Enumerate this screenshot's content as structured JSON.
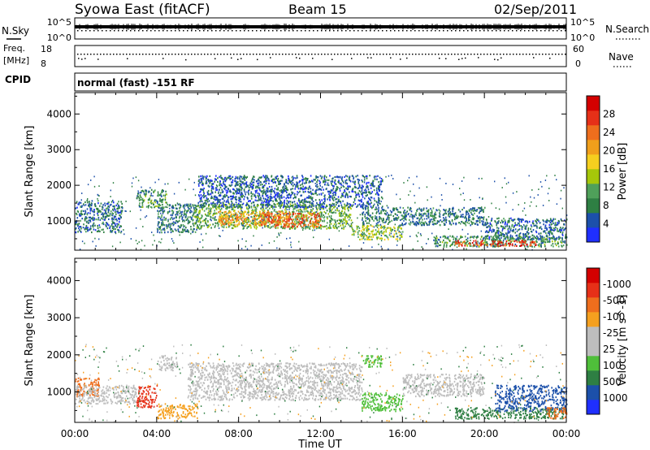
{
  "header": {
    "station": "Syowa East (fitACF)",
    "beam": "Beam 15",
    "date": "02/Sep/2011"
  },
  "status_panels": {
    "nsky_label": "N.Sky",
    "nsky_ticks": [
      "10^5",
      "10^0"
    ],
    "nsearch_label": "N.Search",
    "nsearch_ticks": [
      "10^5",
      "10^0"
    ],
    "freq_label_line1": "Freq.",
    "freq_label_line2": "[MHz]",
    "freq_ticks": [
      "18",
      "8"
    ],
    "nave_label": "Nave",
    "nave_ticks": [
      "60",
      "0"
    ],
    "cpid_label": "CPID",
    "cpid_text": "normal (fast) -151 RF"
  },
  "chart_data": [
    {
      "type": "heatmap",
      "title": "",
      "ylabel": "Slant Range [km]",
      "xlabel": "",
      "ylim": [
        180,
        4600
      ],
      "xlim": [
        0,
        24
      ],
      "yticks": [
        1000,
        2000,
        3000,
        4000
      ],
      "xtick_labels": [
        "00:00",
        "04:00",
        "08:00",
        "12:00",
        "16:00",
        "20:00",
        "00:00"
      ],
      "colorbar": {
        "label": "Power [dB]",
        "tick_labels": [
          "4",
          "8",
          "12",
          "16",
          "20",
          "24",
          "28"
        ],
        "range": [
          0,
          30
        ],
        "colors": [
          "#1f2fff",
          "#1c50aa",
          "#2e7f43",
          "#4fa05a",
          "#a6c70a",
          "#f5cf1f",
          "#f09f1b",
          "#ee6e1d",
          "#e63018",
          "#d40000"
        ]
      },
      "regions": [
        {
          "t0": 0.0,
          "t1": 2.3,
          "r0": 700,
          "r1": 1600,
          "v": 6
        },
        {
          "t0": 3.0,
          "t1": 4.5,
          "r0": 1400,
          "r1": 1900,
          "v": 9
        },
        {
          "t0": 4.0,
          "t1": 6.0,
          "r0": 700,
          "r1": 1500,
          "v": 7
        },
        {
          "t0": 5.8,
          "t1": 13.5,
          "r0": 800,
          "r1": 1500,
          "v": 11
        },
        {
          "t0": 7.0,
          "t1": 10.5,
          "r0": 900,
          "r1": 1300,
          "v": 20
        },
        {
          "t0": 9.0,
          "t1": 12.0,
          "r0": 850,
          "r1": 1250,
          "v": 23
        },
        {
          "t0": 6.0,
          "t1": 15.0,
          "r0": 1400,
          "r1": 2300,
          "v": 5
        },
        {
          "t0": 13.5,
          "t1": 16.0,
          "r0": 500,
          "r1": 900,
          "v": 13
        },
        {
          "t0": 14.0,
          "t1": 20.0,
          "r0": 900,
          "r1": 1400,
          "v": 7
        },
        {
          "t0": 17.5,
          "t1": 24.0,
          "r0": 300,
          "r1": 600,
          "v": 9
        },
        {
          "t0": 18.5,
          "t1": 22.5,
          "r0": 320,
          "r1": 480,
          "v": 25
        },
        {
          "t0": 20.0,
          "t1": 24.0,
          "r0": 500,
          "r1": 1100,
          "v": 6
        }
      ]
    },
    {
      "type": "heatmap",
      "title": "",
      "ylabel": "Slant Range [km]",
      "xlabel": "Time UT",
      "ylim": [
        180,
        4600
      ],
      "xlim": [
        0,
        24
      ],
      "yticks": [
        1000,
        2000,
        3000,
        4000
      ],
      "xtick_labels": [
        "00:00",
        "04:00",
        "08:00",
        "12:00",
        "16:00",
        "20:00",
        "00:00"
      ],
      "colorbar": {
        "label": "Velocity [m s^-1]",
        "tick_labels": [
          "1000",
          "500",
          "100",
          "25",
          "-25",
          "-100",
          "-500",
          "-1000"
        ],
        "colors": [
          "#1f2fff",
          "#1c50aa",
          "#2e7f43",
          "#4fbf3a",
          "#bdbdbd",
          "#bdbdbd",
          "#f5a01f",
          "#ee6e1d",
          "#e63018",
          "#d40000"
        ]
      },
      "regions": [
        {
          "t0": 0.0,
          "t1": 1.2,
          "r0": 900,
          "r1": 1400,
          "c": "#ee6e1d"
        },
        {
          "t0": 0.0,
          "t1": 3.0,
          "r0": 700,
          "r1": 1200,
          "c": "#bdbdbd"
        },
        {
          "t0": 3.0,
          "t1": 4.0,
          "r0": 600,
          "r1": 1200,
          "c": "#e63018"
        },
        {
          "t0": 4.0,
          "t1": 6.0,
          "r0": 300,
          "r1": 700,
          "c": "#f5a01f"
        },
        {
          "t0": 5.5,
          "t1": 14.0,
          "r0": 800,
          "r1": 1800,
          "c": "#bdbdbd"
        },
        {
          "t0": 4.0,
          "t1": 5.0,
          "r0": 1600,
          "r1": 2000,
          "c": "#bdbdbd"
        },
        {
          "t0": 14.0,
          "t1": 16.0,
          "r0": 500,
          "r1": 1000,
          "c": "#4fbf3a"
        },
        {
          "t0": 14.0,
          "t1": 15.0,
          "r0": 1700,
          "r1": 2000,
          "c": "#4fbf3a"
        },
        {
          "t0": 16.0,
          "t1": 20.0,
          "r0": 900,
          "r1": 1500,
          "c": "#bdbdbd"
        },
        {
          "t0": 18.5,
          "t1": 24.0,
          "r0": 300,
          "r1": 600,
          "c": "#2e7f43"
        },
        {
          "t0": 20.5,
          "t1": 24.0,
          "r0": 500,
          "r1": 1200,
          "c": "#1c50aa"
        },
        {
          "t0": 23.0,
          "t1": 24.0,
          "r0": 300,
          "r1": 600,
          "c": "#ee6e1d"
        }
      ]
    }
  ]
}
